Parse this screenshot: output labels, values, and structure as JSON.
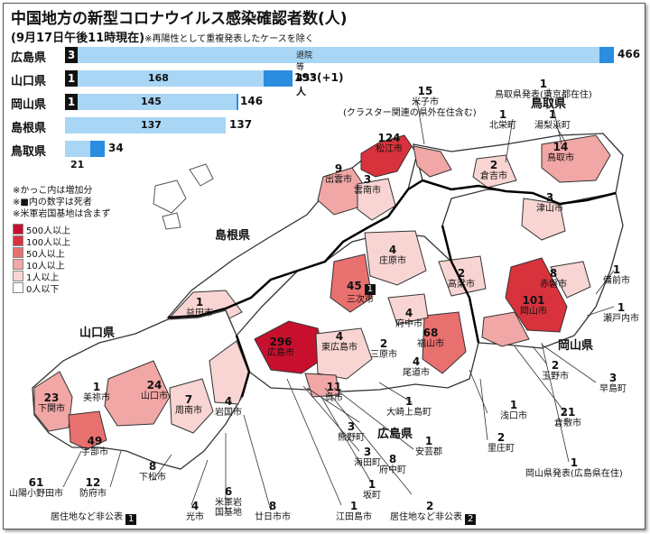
{
  "title": "中国地方の新型コロナウイルス感染確認者数(人)",
  "subtitle": "(9月17日午後11時現在)",
  "subtitle_note": "※再陽性として重複発表したケースを除く",
  "colors": {
    "bar_light": "#a9d6f5",
    "bar_dark": "#2a8de0",
    "c500": "#c8102e",
    "c100": "#d8323c",
    "c50": "#e8706f",
    "c10": "#f0a7a5",
    "c1": "#f8d5d3",
    "c0": "#ffffff"
  },
  "bars": [
    {
      "pref": "広島県",
      "deaths": "3",
      "inner_value": "453人",
      "inner_prefix": "退院等",
      "total": "466",
      "discharged": 453,
      "total_num": 466
    },
    {
      "pref": "山口県",
      "deaths": "1",
      "inner_value": "168",
      "total": "193(+1)",
      "discharged": 168,
      "total_num": 193
    },
    {
      "pref": "岡山県",
      "deaths": "1",
      "inner_value": "145",
      "total": "146",
      "discharged": 145,
      "total_num": 146
    },
    {
      "pref": "島根県",
      "deaths": "",
      "inner_value": "137",
      "total": "137",
      "discharged": 137,
      "total_num": 137
    },
    {
      "pref": "鳥取県",
      "deaths": "",
      "inner_value": "21",
      "total": "34",
      "discharged": 21,
      "total_num": 34
    }
  ],
  "legend": {
    "notes": [
      "※かっこ内は増加分",
      "※■内の数字は死者",
      "※米軍岩国基地は含まず"
    ],
    "items": [
      "500人以上",
      "100人以上",
      "50人以上",
      "10人以上",
      "1人以上",
      "0人以下"
    ]
  },
  "prefectures": {
    "shimane": "島根県",
    "tottori": "鳥取県",
    "yamaguchi": "山口県",
    "okayama": "岡山県",
    "hiroshima": "広島県"
  },
  "cities": [
    {
      "num": "15",
      "name": "米子市",
      "note": "(クラスター関連の県外在住含む)"
    },
    {
      "num": "124",
      "name": "松江市"
    },
    {
      "num": "1",
      "name": "鳥取県発表(東京都在住)"
    },
    {
      "num": "1",
      "name": "北栄町"
    },
    {
      "num": "1",
      "name": "湯梨浜町"
    },
    {
      "num": "14",
      "name": "鳥取市"
    },
    {
      "num": "2",
      "name": "倉吉市"
    },
    {
      "num": "9",
      "name": "出雲市"
    },
    {
      "num": "3",
      "name": "雲南市"
    },
    {
      "num": "3",
      "name": "津山市"
    },
    {
      "num": "4",
      "name": "庄原市"
    },
    {
      "num": "2",
      "name": "高梁市"
    },
    {
      "num": "8",
      "name": "赤磐市"
    },
    {
      "num": "1",
      "name": "備前市"
    },
    {
      "num": "45",
      "name": "三次市",
      "deaths": "1"
    },
    {
      "num": "101",
      "name": "岡山市"
    },
    {
      "num": "1",
      "name": "瀬戸内市"
    },
    {
      "num": "1",
      "name": "益田市"
    },
    {
      "num": "4",
      "name": "府中市"
    },
    {
      "num": "68",
      "name": "福山市"
    },
    {
      "num": "296",
      "name": "広島市"
    },
    {
      "num": "4",
      "name": "東広島市"
    },
    {
      "num": "2",
      "name": "三原市"
    },
    {
      "num": "4",
      "name": "尾道市"
    },
    {
      "num": "2",
      "name": "玉野市"
    },
    {
      "num": "3",
      "name": "早島町"
    },
    {
      "num": "1",
      "name": "美祢市"
    },
    {
      "num": "23",
      "name": "下関市"
    },
    {
      "num": "24",
      "name": "山口市"
    },
    {
      "num": "7",
      "name": "周南市"
    },
    {
      "num": "4",
      "name": "岩国市"
    },
    {
      "num": "11",
      "name": "呉市"
    },
    {
      "num": "1",
      "name": "大崎上島町"
    },
    {
      "num": "1",
      "name": "浅口市"
    },
    {
      "num": "21",
      "name": "倉敷市"
    },
    {
      "num": "49",
      "name": "宇部市"
    },
    {
      "num": "3",
      "name": "熊野町"
    },
    {
      "num": "1",
      "name": "安芸郡"
    },
    {
      "num": "2",
      "name": "里庄町"
    },
    {
      "num": "3",
      "name": "海田町"
    },
    {
      "num": "8",
      "name": "府中町"
    },
    {
      "num": "1",
      "name": "岡山県発表(広島県在住)"
    },
    {
      "num": "61",
      "name": "山陽小野田市"
    },
    {
      "num": "12",
      "name": "防府市"
    },
    {
      "num": "8",
      "name": "下松市"
    },
    {
      "num": "1",
      "name": "坂町"
    },
    {
      "num": "4",
      "name": "光市"
    },
    {
      "num": "6",
      "name": "米軍岩国基地"
    },
    {
      "num": "8",
      "name": "廿日市市"
    },
    {
      "num": "1",
      "name": "江田島市"
    }
  ],
  "undisclosed": [
    {
      "label": "居住地など非公表",
      "deaths": "1"
    },
    {
      "num": "2",
      "label": "居住地など非公表",
      "deaths": "2"
    }
  ]
}
